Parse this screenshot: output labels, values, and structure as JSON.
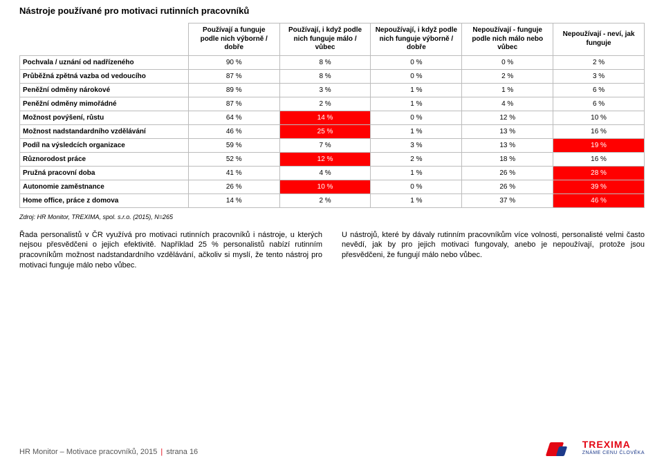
{
  "title": "Nástroje používané pro motivaci rutinních pracovníků",
  "columns": [
    "Používají a funguje podle nich výborně / dobře",
    "Používají, i když podle nich funguje málo / vůbec",
    "Nepoužívají, i když podle nich funguje výborně / dobře",
    "Nepoužívají - funguje podle nich málo nebo vůbec",
    "Nepoužívají - neví, jak funguje"
  ],
  "rows": [
    {
      "label": "Pochvala / uznání od nadřízeného",
      "cells": [
        {
          "v": "90 %"
        },
        {
          "v": "8 %"
        },
        {
          "v": "0 %"
        },
        {
          "v": "0 %"
        },
        {
          "v": "2 %"
        }
      ]
    },
    {
      "label": "Průběžná zpětná vazba od vedoucího",
      "cells": [
        {
          "v": "87 %"
        },
        {
          "v": "8 %"
        },
        {
          "v": "0 %"
        },
        {
          "v": "2 %"
        },
        {
          "v": "3 %"
        }
      ]
    },
    {
      "label": "Peněžní odměny nárokové",
      "cells": [
        {
          "v": "89 %"
        },
        {
          "v": "3 %"
        },
        {
          "v": "1 %"
        },
        {
          "v": "1 %"
        },
        {
          "v": "6 %"
        }
      ]
    },
    {
      "label": "Peněžní odměny mimořádné",
      "cells": [
        {
          "v": "87 %"
        },
        {
          "v": "2 %"
        },
        {
          "v": "1 %"
        },
        {
          "v": "4 %"
        },
        {
          "v": "6 %"
        }
      ]
    },
    {
      "label": "Možnost povýšení, růstu",
      "cells": [
        {
          "v": "64 %"
        },
        {
          "v": "14 %",
          "red": true
        },
        {
          "v": "0 %"
        },
        {
          "v": "12 %"
        },
        {
          "v": "10 %"
        }
      ]
    },
    {
      "label": "Možnost nadstandardního vzdělávání",
      "cells": [
        {
          "v": "46 %"
        },
        {
          "v": "25 %",
          "red": true
        },
        {
          "v": "1 %"
        },
        {
          "v": "13 %"
        },
        {
          "v": "16 %"
        }
      ]
    },
    {
      "label": "Podíl na výsledcích organizace",
      "cells": [
        {
          "v": "59 %"
        },
        {
          "v": "7 %"
        },
        {
          "v": "3 %"
        },
        {
          "v": "13 %"
        },
        {
          "v": "19 %",
          "red": true
        }
      ]
    },
    {
      "label": "Různorodost práce",
      "cells": [
        {
          "v": "52 %"
        },
        {
          "v": "12 %",
          "red": true
        },
        {
          "v": "2 %"
        },
        {
          "v": "18 %"
        },
        {
          "v": "16 %"
        }
      ]
    },
    {
      "label": "Pružná pracovní doba",
      "cells": [
        {
          "v": "41 %"
        },
        {
          "v": "4 %"
        },
        {
          "v": "1 %"
        },
        {
          "v": "26 %"
        },
        {
          "v": "28 %",
          "red": true
        }
      ]
    },
    {
      "label": "Autonomie zaměstnance",
      "cells": [
        {
          "v": "26 %"
        },
        {
          "v": "10 %",
          "red": true
        },
        {
          "v": "0 %"
        },
        {
          "v": "26 %"
        },
        {
          "v": "39 %",
          "red": true
        }
      ]
    },
    {
      "label": "Home office, práce z domova",
      "cells": [
        {
          "v": "14 %"
        },
        {
          "v": "2 %"
        },
        {
          "v": "1 %"
        },
        {
          "v": "37 %"
        },
        {
          "v": "46 %",
          "red": true
        }
      ]
    }
  ],
  "col_widths": [
    "27%",
    "14.6%",
    "14.6%",
    "14.6%",
    "14.6%",
    "14.6%"
  ],
  "source": "Zdroj: HR Monitor, TREXIMA, spol. s.r.o. (2015), N=265",
  "body_left": "Řada personalistů v ČR využívá pro motivaci rutinních pracovníků i nástroje, u kterých nejsou přesvědčeni o jejich efektivitě. Například 25 % personalistů nabízí rutinním pracovníkům možnost nadstandardního vzdělávání, ačkoliv si myslí, že tento nástroj pro motivaci funguje málo nebo vůbec.",
  "body_right": "U nástrojů, které by dávaly rutinním pracovníkům více volnosti, personalisté velmi často nevědí, jak by pro jejich motivaci fungovaly, anebo je nepoužívají, protože jsou přesvědčeni, že fungují málo nebo vůbec.",
  "footer": {
    "doc": "HR Monitor – Motivace pracovníků, 2015",
    "page": "strana 16"
  },
  "logo": {
    "title": "TREXIMA",
    "sub": "ZNÁME CENU ČLOVĚKA"
  },
  "colors": {
    "red": "#ff0000",
    "brand_red": "#e30613",
    "brand_blue": "#1d3a8a",
    "border": "#bbbbbb",
    "text": "#000000"
  }
}
